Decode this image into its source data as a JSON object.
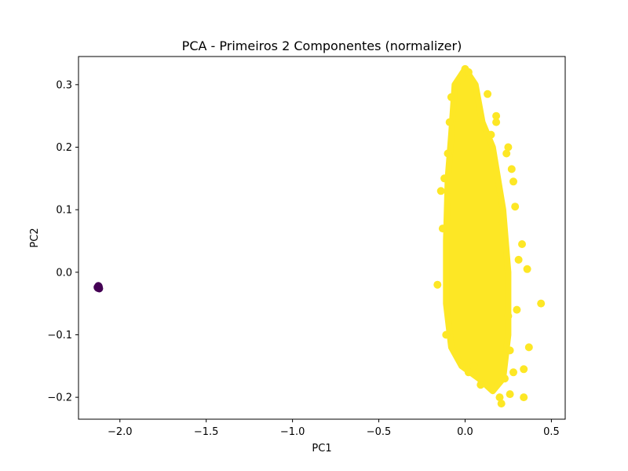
{
  "chart_data": {
    "type": "scatter",
    "title": "PCA - Primeiros 2 Componentes (normalizer)",
    "xlabel": "PC1",
    "ylabel": "PC2",
    "xlim": [
      -2.24,
      0.58
    ],
    "ylim": [
      -0.235,
      0.345
    ],
    "xticks": [
      -2.0,
      -1.5,
      -1.0,
      -0.5,
      0.0,
      0.5
    ],
    "xtick_labels": [
      "−2.0",
      "−1.5",
      "−1.0",
      "−0.5",
      "0.0",
      "0.5"
    ],
    "yticks": [
      -0.2,
      -0.1,
      0.0,
      0.1,
      0.2,
      0.3
    ],
    "ytick_labels": [
      "−0.2",
      "−0.1",
      "0.0",
      "0.1",
      "0.2",
      "0.3"
    ],
    "grid": false,
    "legend": "none",
    "colors": {
      "cluster_0": "#440154",
      "cluster_1": "#fde725"
    },
    "series": [
      {
        "color_key": "cluster_0",
        "x": [
          -2.13,
          -2.125,
          -2.12,
          -2.128,
          -2.122
        ],
        "y": [
          -0.024,
          -0.022,
          -0.026,
          -0.025,
          -0.023
        ]
      },
      {
        "color_key": "cluster_1",
        "core_envelope": [
          [
            -0.06,
            0.3
          ],
          [
            0.0,
            0.325
          ],
          [
            0.06,
            0.3
          ],
          [
            0.1,
            0.24
          ],
          [
            0.16,
            0.2
          ],
          [
            0.22,
            0.1
          ],
          [
            0.25,
            0.0
          ],
          [
            0.25,
            -0.1
          ],
          [
            0.22,
            -0.17
          ],
          [
            0.16,
            -0.19
          ],
          [
            0.08,
            -0.17
          ],
          [
            -0.02,
            -0.15
          ],
          [
            -0.08,
            -0.12
          ],
          [
            -0.11,
            -0.05
          ],
          [
            -0.11,
            0.05
          ],
          [
            -0.1,
            0.15
          ],
          [
            -0.08,
            0.22
          ]
        ],
        "x": [
          0.0,
          0.02,
          -0.02,
          0.13,
          0.18,
          0.25,
          0.24,
          0.27,
          0.28,
          0.29,
          0.33,
          0.36,
          0.44,
          0.37,
          0.28,
          0.26,
          0.34,
          0.34,
          -0.16,
          -0.12,
          -0.14,
          -0.1,
          -0.09,
          -0.13,
          0.05,
          0.09,
          0.2,
          0.21,
          0.23,
          0.26,
          0.3,
          0.25,
          0.31,
          0.22,
          0.15,
          0.18,
          -0.05,
          -0.08,
          0.02,
          -0.11
        ],
        "y": [
          0.325,
          0.32,
          0.31,
          0.285,
          0.25,
          0.2,
          0.19,
          0.165,
          0.145,
          0.105,
          0.045,
          0.005,
          -0.05,
          -0.12,
          -0.16,
          -0.195,
          -0.2,
          -0.155,
          -0.02,
          0.15,
          0.13,
          0.19,
          0.24,
          0.07,
          -0.15,
          -0.18,
          -0.2,
          -0.21,
          -0.17,
          -0.125,
          -0.06,
          -0.07,
          0.02,
          0.08,
          0.22,
          0.24,
          0.3,
          0.28,
          -0.16,
          -0.1
        ]
      }
    ]
  }
}
